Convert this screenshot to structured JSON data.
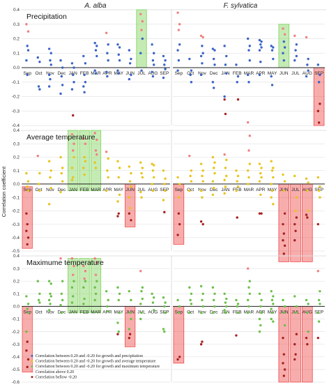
{
  "colors": {
    "blue": "#3a64c6",
    "yellow": "#e8c41a",
    "green": "#6cc04a",
    "above": "#f08080",
    "below": "#a82020",
    "green_box": "#7ed35a",
    "red_box": "#ef4a4a",
    "grid": "#e4e4e4"
  },
  "chart_data": {
    "type": "scatter",
    "columns": [
      "A. alba",
      "F. sylvatica"
    ],
    "ylabel": "Correlation coefficient",
    "months": [
      "Sep",
      "Oct",
      "Nov",
      "Dec",
      "JAN",
      "FEB",
      "MAR",
      "APR",
      "MAY",
      "JUN",
      "JUL",
      "AUG",
      "SEP"
    ],
    "legend": [
      {
        "color": "blue",
        "label": "Correlation between 0.20 and -0.20 for growth and precipitation"
      },
      {
        "color": "yellow",
        "label": "Correlation between 0.20 and -0.20 for growth and average temperature"
      },
      {
        "color": "green",
        "label": "Correlation between 0.20 and -0.20 for growth and maximum temperature"
      },
      {
        "color": "above",
        "label": "Correlation above 0.20"
      },
      {
        "color": "below",
        "label": "Correlation bellow -0.20"
      }
    ],
    "panels": [
      {
        "title": "Precipitation",
        "color": "blue",
        "yticks": [
          0.4,
          0.3,
          0.2,
          0.1,
          0.0,
          -0.1,
          -0.2,
          -0.3,
          -0.4
        ],
        "ylim": [
          -0.4,
          0.4
        ],
        "plots": [
          {
            "values": [
              [
                0.3,
                0.25,
                0.15,
                0.12,
                0.05,
                -0.05
              ],
              [
                0.07,
                0.04,
                -0.13,
                -0.15
              ],
              [
                0.13,
                0.1,
                0.05,
                0.02,
                -0.05,
                -0.08,
                -0.13
              ],
              [
                0.05,
                0.0,
                -0.06,
                -0.12,
                -0.18
              ],
              [
                0.03,
                0.0,
                -0.05,
                -0.1,
                -0.15,
                -0.33
              ],
              [
                0.08,
                0.03,
                -0.05,
                -0.1,
                -0.13,
                -0.17
              ],
              [
                0.17,
                0.15,
                0.12,
                0.08,
                -0.02,
                -0.04
              ],
              [
                0.24,
                0.16,
                0.1,
                0.05,
                -0.03,
                -0.06
              ],
              [
                0.16,
                0.14,
                0.09,
                0.05,
                -0.02,
                -0.04
              ],
              [
                0.12,
                0.06,
                0.03,
                -0.05,
                -0.08
              ],
              [
                0.37,
                0.32,
                0.26,
                0.2,
                0.1,
                -0.02
              ],
              [
                0.16,
                0.1,
                0.05,
                0.02,
                -0.03,
                -0.06
              ],
              [
                0.08,
                0.05,
                0.02,
                -0.01,
                -0.07
              ]
            ],
            "boxes": [
              {
                "month": "JUL",
                "color": "green_box",
                "ymin": 0.0,
                "ymax": 0.4
              }
            ]
          },
          {
            "values": [
              [
                0.38,
                0.3,
                0.26,
                0.16,
                0.12,
                0.05,
                -0.02
              ],
              [
                0.06,
                -0.02,
                -0.05,
                -0.1
              ],
              [
                0.22,
                0.21,
                0.15,
                0.1,
                0.08,
                0.03,
                -0.05
              ],
              [
                0.13,
                0.12,
                0.06,
                0.02,
                -0.1,
                -0.14
              ],
              [
                0.15,
                0.08,
                0.02,
                -0.04,
                -0.2,
                -0.32,
                -0.22
              ],
              [
                0.02,
                -0.06,
                -0.1,
                -0.22
              ],
              [
                0.2,
                0.15,
                0.12,
                0.05,
                -0.05,
                -0.1
              ],
              [
                0.19,
                0.18,
                0.16,
                0.14,
                0.12,
                0.04,
                -0.05
              ],
              [
                0.15,
                0.14,
                0.12,
                0.06,
                -0.06,
                -0.12
              ],
              [
                0.27,
                0.23,
                0.18,
                0.14,
                0.1,
                0.05
              ],
              [
                0.22,
                0.16,
                0.12,
                0.08,
                0.05
              ],
              [
                0.21,
                0.06,
                0.02,
                -0.02,
                -0.06
              ],
              [
                0.02,
                -0.05,
                -0.1,
                -0.25,
                -0.3,
                -0.38
              ]
            ],
            "boxes": [
              {
                "month": "JUN",
                "color": "green_box",
                "ymin": 0.0,
                "ymax": 0.3
              },
              {
                "month": "SEP",
                "color": "red_box",
                "ymin": -0.4,
                "ymax": 0.0
              }
            ]
          }
        ]
      },
      {
        "title": "Average temperature",
        "color": "yellow",
        "yticks": [
          0.4,
          0.3,
          0.2,
          0.1,
          0.0,
          -0.1,
          -0.2,
          -0.3,
          -0.4,
          -0.5
        ],
        "ylim": [
          -0.5,
          0.4
        ],
        "plots": [
          {
            "values": [
              [
                0.08,
                0.02,
                -0.02,
                -0.05,
                -0.22,
                -0.3,
                -0.35,
                -0.4,
                -0.45
              ],
              [
                0.21,
                0.08,
                0.0,
                -0.05
              ],
              [
                0.17,
                0.1,
                0.05,
                -0.03,
                -0.15
              ],
              [
                0.2,
                0.12,
                0.08,
                0.02,
                -0.06
              ],
              [
                0.37,
                0.3,
                0.25,
                0.2,
                0.12,
                0.05,
                0.03
              ],
              [
                0.34,
                0.3,
                0.2,
                0.17,
                0.12,
                0.07
              ],
              [
                0.38,
                0.33,
                0.25,
                0.22,
                0.16,
                0.12
              ],
              [
                0.24,
                0.19,
                0.1,
                0.05,
                -0.05
              ],
              [
                0.17,
                0.12,
                0.05,
                -0.08,
                -0.13,
                -0.22,
                -0.24
              ],
              [
                0.13,
                0.08,
                0.02,
                -0.02,
                -0.1,
                -0.18,
                -0.22,
                -0.27
              ],
              [
                0.16,
                0.12,
                0.08,
                0.05,
                -0.06,
                -0.1
              ],
              [
                0.15,
                0.14,
                0.1,
                0.05,
                0.0,
                -0.05
              ],
              [
                0.1,
                0.04,
                0.0,
                -0.05,
                -0.12,
                -0.21
              ]
            ],
            "boxes": [
              {
                "month": "JAN",
                "color": "green_box",
                "ymin": -0.05,
                "ymax": 0.4
              },
              {
                "month": "FEB",
                "color": "green_box",
                "ymin": -0.05,
                "ymax": 0.4
              },
              {
                "month": "MAR",
                "color": "green_box",
                "ymin": -0.05,
                "ymax": 0.4
              },
              {
                "month": "Sep",
                "color": "red_box",
                "ymin": -0.48,
                "ymax": -0.02
              },
              {
                "month": "JUN",
                "color": "red_box",
                "ymin": -0.32,
                "ymax": 0.0
              }
            ]
          },
          {
            "values": [
              [
                0.05,
                0.0,
                -0.1,
                -0.3,
                -0.38,
                -0.22
              ],
              [
                0.21,
                0.1,
                0.06,
                0.02,
                -0.05
              ],
              [
                0.15,
                0.1,
                0.06,
                0.02,
                -0.05,
                -0.1,
                -0.28,
                -0.3
              ],
              [
                0.2,
                0.16,
                0.12,
                0.08,
                0.02,
                -0.03,
                -0.08
              ],
              [
                0.22,
                0.18,
                0.12,
                0.06,
                0.03,
                -0.02,
                -0.07
              ],
              [
                0.1,
                0.06,
                0.02,
                -0.02,
                -0.05,
                -0.25
              ],
              [
                0.46,
                0.36,
                0.25,
                0.15,
                0.1,
                0.05,
                0.0
              ],
              [
                0.15,
                0.12,
                0.08,
                0.05,
                0.02,
                -0.08,
                -0.22,
                -0.22
              ],
              [
                0.17,
                0.12,
                0.1,
                0.05,
                0.0,
                -0.05,
                -0.1,
                -0.15
              ],
              [
                0.07,
                0.02,
                -0.05,
                -0.22,
                -0.3,
                -0.37,
                -0.42,
                -0.46,
                -0.52
              ],
              [
                0.06,
                -0.1,
                -0.2,
                -0.25,
                -0.3,
                -0.35,
                -0.42
              ],
              [
                0.04,
                0.01,
                -0.05,
                -0.2,
                -0.23,
                -0.25
              ],
              [
                0.05,
                -0.02,
                -0.05,
                -0.1,
                -0.3
              ]
            ],
            "boxes": [
              {
                "month": "Sep",
                "color": "red_box",
                "ymin": -0.45,
                "ymax": 0.0
              },
              {
                "month": "JUN",
                "color": "red_box",
                "ymin": -0.58,
                "ymax": 0.0
              },
              {
                "month": "JUL",
                "color": "red_box",
                "ymin": -0.58,
                "ymax": 0.0
              },
              {
                "month": "AUG",
                "color": "red_box",
                "ymin": -0.58,
                "ymax": 0.0
              }
            ]
          }
        ]
      },
      {
        "title": "Maximume temperature",
        "color": "green",
        "yticks": [
          0.4,
          0.3,
          0.2,
          0.1,
          0.0,
          -0.1,
          -0.2,
          -0.3,
          -0.4,
          -0.5,
          -0.6
        ],
        "ylim": [
          -0.6,
          0.4
        ],
        "plots": [
          {
            "values": [
              [
                0.08,
                0.02,
                -0.02,
                -0.05,
                -0.2,
                -0.28,
                -0.35,
                -0.42,
                -0.48
              ],
              [
                0.2,
                0.1,
                0.05,
                0.03
              ],
              [
                0.2,
                0.18,
                0.1,
                0.08,
                0.05,
                0.02,
                -0.03
              ],
              [
                0.38,
                0.2,
                0.1,
                0.05,
                0.01,
                -0.05
              ],
              [
                0.38,
                0.32,
                0.25,
                0.2,
                0.15,
                0.08,
                0.03
              ],
              [
                0.32,
                0.28,
                0.22,
                0.2,
                0.15,
                0.06,
                0.02
              ],
              [
                0.38,
                0.35,
                0.25,
                0.2,
                0.15,
                0.1,
                0.05
              ],
              [
                0.12,
                0.05,
                0.0,
                -0.04
              ],
              [
                0.15,
                0.1,
                0.05,
                -0.05,
                -0.13,
                -0.2,
                -0.22
              ],
              [
                0.12,
                0.05,
                -0.05,
                -0.1,
                -0.18,
                -0.22,
                -0.25
              ],
              [
                0.28,
                0.15,
                0.12,
                0.06,
                0.02,
                -0.05,
                -0.1
              ],
              [
                0.1,
                0.07,
                0.03,
                -0.03
              ],
              [
                0.07,
                0.03,
                0.0,
                -0.05,
                -0.18,
                -0.2
              ]
            ],
            "boxes": [
              {
                "month": "JAN",
                "color": "green_box",
                "ymin": -0.05,
                "ymax": 0.38
              },
              {
                "month": "FEB",
                "color": "green_box",
                "ymin": -0.05,
                "ymax": 0.38
              },
              {
                "month": "MAR",
                "color": "green_box",
                "ymin": -0.05,
                "ymax": 0.38
              },
              {
                "month": "Sep",
                "color": "red_box",
                "ymin": -0.52,
                "ymax": 0.0
              },
              {
                "month": "JUN",
                "color": "red_box",
                "ymin": -0.32,
                "ymax": 0.0
              }
            ]
          },
          {
            "values": [
              [
                0.05,
                0.0,
                -0.05,
                -0.4,
                -0.42
              ],
              [
                0.15,
                0.1,
                0.05,
                0.02,
                -0.05
              ],
              [
                0.16,
                0.1,
                0.05,
                0.0,
                -0.05,
                -0.28,
                -0.3
              ],
              [
                0.15,
                0.1,
                0.05,
                0.0,
                -0.05
              ],
              [
                0.1,
                0.06,
                0.03,
                0.0,
                -0.03,
                -0.05
              ],
              [
                0.05,
                0.02,
                0.0,
                -0.05,
                -0.23
              ],
              [
                0.3,
                0.2,
                0.15,
                0.1,
                0.05,
                0.0,
                -0.05
              ],
              [
                0.1,
                0.05,
                0.0,
                -0.05,
                -0.1,
                -0.15,
                -0.2
              ],
              [
                0.12,
                0.08,
                0.05,
                0.02,
                -0.02,
                -0.05,
                -0.1,
                -0.12
              ],
              [
                0.05,
                0.0,
                -0.05,
                -0.15,
                -0.25,
                -0.38,
                -0.45,
                -0.5,
                -0.55
              ],
              [
                0.08,
                0.0,
                -0.05,
                -0.22,
                -0.3,
                -0.38,
                -0.42
              ],
              [
                0.05,
                0.02,
                -0.05,
                -0.2,
                -0.25,
                -0.3
              ],
              [
                0.28,
                0.12,
                0.05,
                0.02,
                -0.05,
                -0.12,
                -0.25
              ]
            ],
            "boxes": [
              {
                "month": "Sep",
                "color": "red_box",
                "ymin": -0.45,
                "ymax": 0.0
              },
              {
                "month": "JUN",
                "color": "red_box",
                "ymin": -0.6,
                "ymax": 0.0
              },
              {
                "month": "JUL",
                "color": "red_box",
                "ymin": -0.6,
                "ymax": 0.0
              },
              {
                "month": "AUG",
                "color": "red_box",
                "ymin": -0.6,
                "ymax": 0.0
              }
            ]
          }
        ]
      }
    ]
  }
}
